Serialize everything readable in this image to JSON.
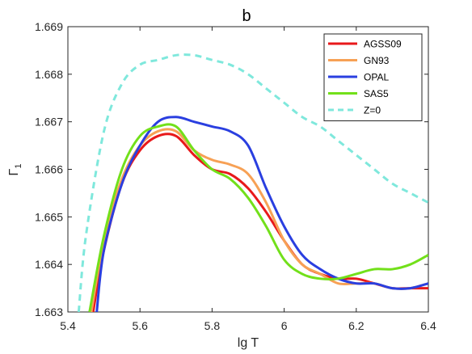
{
  "chart_data": {
    "type": "line",
    "title": "b",
    "xlabel": "lg T",
    "ylabel_main": "Γ",
    "ylabel_sub": "1",
    "xlim": [
      5.4,
      6.4
    ],
    "ylim": [
      1.663,
      1.669
    ],
    "xticks": [
      "5.4",
      "5.6",
      "5.8",
      "6",
      "6.2",
      "6.4"
    ],
    "yticks": [
      "1.663",
      "1.664",
      "1.665",
      "1.666",
      "1.667",
      "1.668",
      "1.669"
    ],
    "grid": false,
    "legend_position": "top-right",
    "series": [
      {
        "name": "AGSS09",
        "color": "#e8191b",
        "dashed": false,
        "points": [
          [
            5.47,
            1.663
          ],
          [
            5.5,
            1.6643
          ],
          [
            5.55,
            1.6657
          ],
          [
            5.6,
            1.6664
          ],
          [
            5.65,
            1.6667
          ],
          [
            5.7,
            1.6667
          ],
          [
            5.75,
            1.6663
          ],
          [
            5.8,
            1.666
          ],
          [
            5.85,
            1.6659
          ],
          [
            5.9,
            1.6656
          ],
          [
            5.95,
            1.6651
          ],
          [
            6.0,
            1.6645
          ],
          [
            6.05,
            1.664
          ],
          [
            6.1,
            1.6638
          ],
          [
            6.15,
            1.6637
          ],
          [
            6.2,
            1.6637
          ],
          [
            6.25,
            1.6636
          ],
          [
            6.3,
            1.6635
          ],
          [
            6.35,
            1.6635
          ],
          [
            6.4,
            1.6635
          ]
        ]
      },
      {
        "name": "GN93",
        "color": "#f7a155",
        "dashed": false,
        "points": [
          [
            5.465,
            1.663
          ],
          [
            5.5,
            1.6645
          ],
          [
            5.55,
            1.6658
          ],
          [
            5.6,
            1.6665
          ],
          [
            5.65,
            1.6668
          ],
          [
            5.7,
            1.6668
          ],
          [
            5.75,
            1.6664
          ],
          [
            5.8,
            1.6662
          ],
          [
            5.85,
            1.6661
          ],
          [
            5.9,
            1.6659
          ],
          [
            5.95,
            1.6653
          ],
          [
            6.0,
            1.6645
          ],
          [
            6.05,
            1.664
          ],
          [
            6.1,
            1.6638
          ],
          [
            6.15,
            1.6636
          ],
          [
            6.2,
            1.6636
          ],
          [
            6.25,
            1.6636
          ],
          [
            6.3,
            1.6635
          ],
          [
            6.35,
            1.6635
          ],
          [
            6.4,
            1.6636
          ]
        ]
      },
      {
        "name": "OPAL",
        "color": "#2a3fe0",
        "dashed": false,
        "points": [
          [
            5.48,
            1.663
          ],
          [
            5.5,
            1.6643
          ],
          [
            5.55,
            1.6657
          ],
          [
            5.6,
            1.6665
          ],
          [
            5.65,
            1.667
          ],
          [
            5.7,
            1.6671
          ],
          [
            5.75,
            1.667
          ],
          [
            5.8,
            1.6669
          ],
          [
            5.85,
            1.6668
          ],
          [
            5.9,
            1.6665
          ],
          [
            5.95,
            1.6656
          ],
          [
            6.0,
            1.6648
          ],
          [
            6.05,
            1.6642
          ],
          [
            6.1,
            1.6639
          ],
          [
            6.15,
            1.6637
          ],
          [
            6.2,
            1.6636
          ],
          [
            6.25,
            1.6636
          ],
          [
            6.3,
            1.6635
          ],
          [
            6.35,
            1.6635
          ],
          [
            6.4,
            1.6636
          ]
        ]
      },
      {
        "name": "SAS5",
        "color": "#72e01a",
        "dashed": false,
        "points": [
          [
            5.46,
            1.663
          ],
          [
            5.5,
            1.6646
          ],
          [
            5.55,
            1.666
          ],
          [
            5.6,
            1.6667
          ],
          [
            5.65,
            1.6669
          ],
          [
            5.7,
            1.6669
          ],
          [
            5.75,
            1.6664
          ],
          [
            5.8,
            1.666
          ],
          [
            5.85,
            1.6658
          ],
          [
            5.9,
            1.6654
          ],
          [
            5.95,
            1.6648
          ],
          [
            6.0,
            1.6641
          ],
          [
            6.05,
            1.6638
          ],
          [
            6.1,
            1.6637
          ],
          [
            6.15,
            1.6637
          ],
          [
            6.2,
            1.6638
          ],
          [
            6.25,
            1.6639
          ],
          [
            6.3,
            1.6639
          ],
          [
            6.35,
            1.664
          ],
          [
            6.4,
            1.6642
          ]
        ]
      },
      {
        "name": "Z=0",
        "color": "#7fe8dc",
        "dashed": true,
        "points": [
          [
            5.43,
            1.663
          ],
          [
            5.45,
            1.6646
          ],
          [
            5.5,
            1.6668
          ],
          [
            5.55,
            1.6678
          ],
          [
            5.6,
            1.6682
          ],
          [
            5.65,
            1.6683
          ],
          [
            5.7,
            1.6684
          ],
          [
            5.75,
            1.6684
          ],
          [
            5.8,
            1.6683
          ],
          [
            5.85,
            1.6682
          ],
          [
            5.9,
            1.668
          ],
          [
            5.95,
            1.6677
          ],
          [
            6.0,
            1.6674
          ],
          [
            6.05,
            1.6671
          ],
          [
            6.1,
            1.6669
          ],
          [
            6.15,
            1.6666
          ],
          [
            6.2,
            1.6663
          ],
          [
            6.25,
            1.666
          ],
          [
            6.3,
            1.6657
          ],
          [
            6.35,
            1.6655
          ],
          [
            6.4,
            1.6653
          ]
        ]
      }
    ]
  }
}
